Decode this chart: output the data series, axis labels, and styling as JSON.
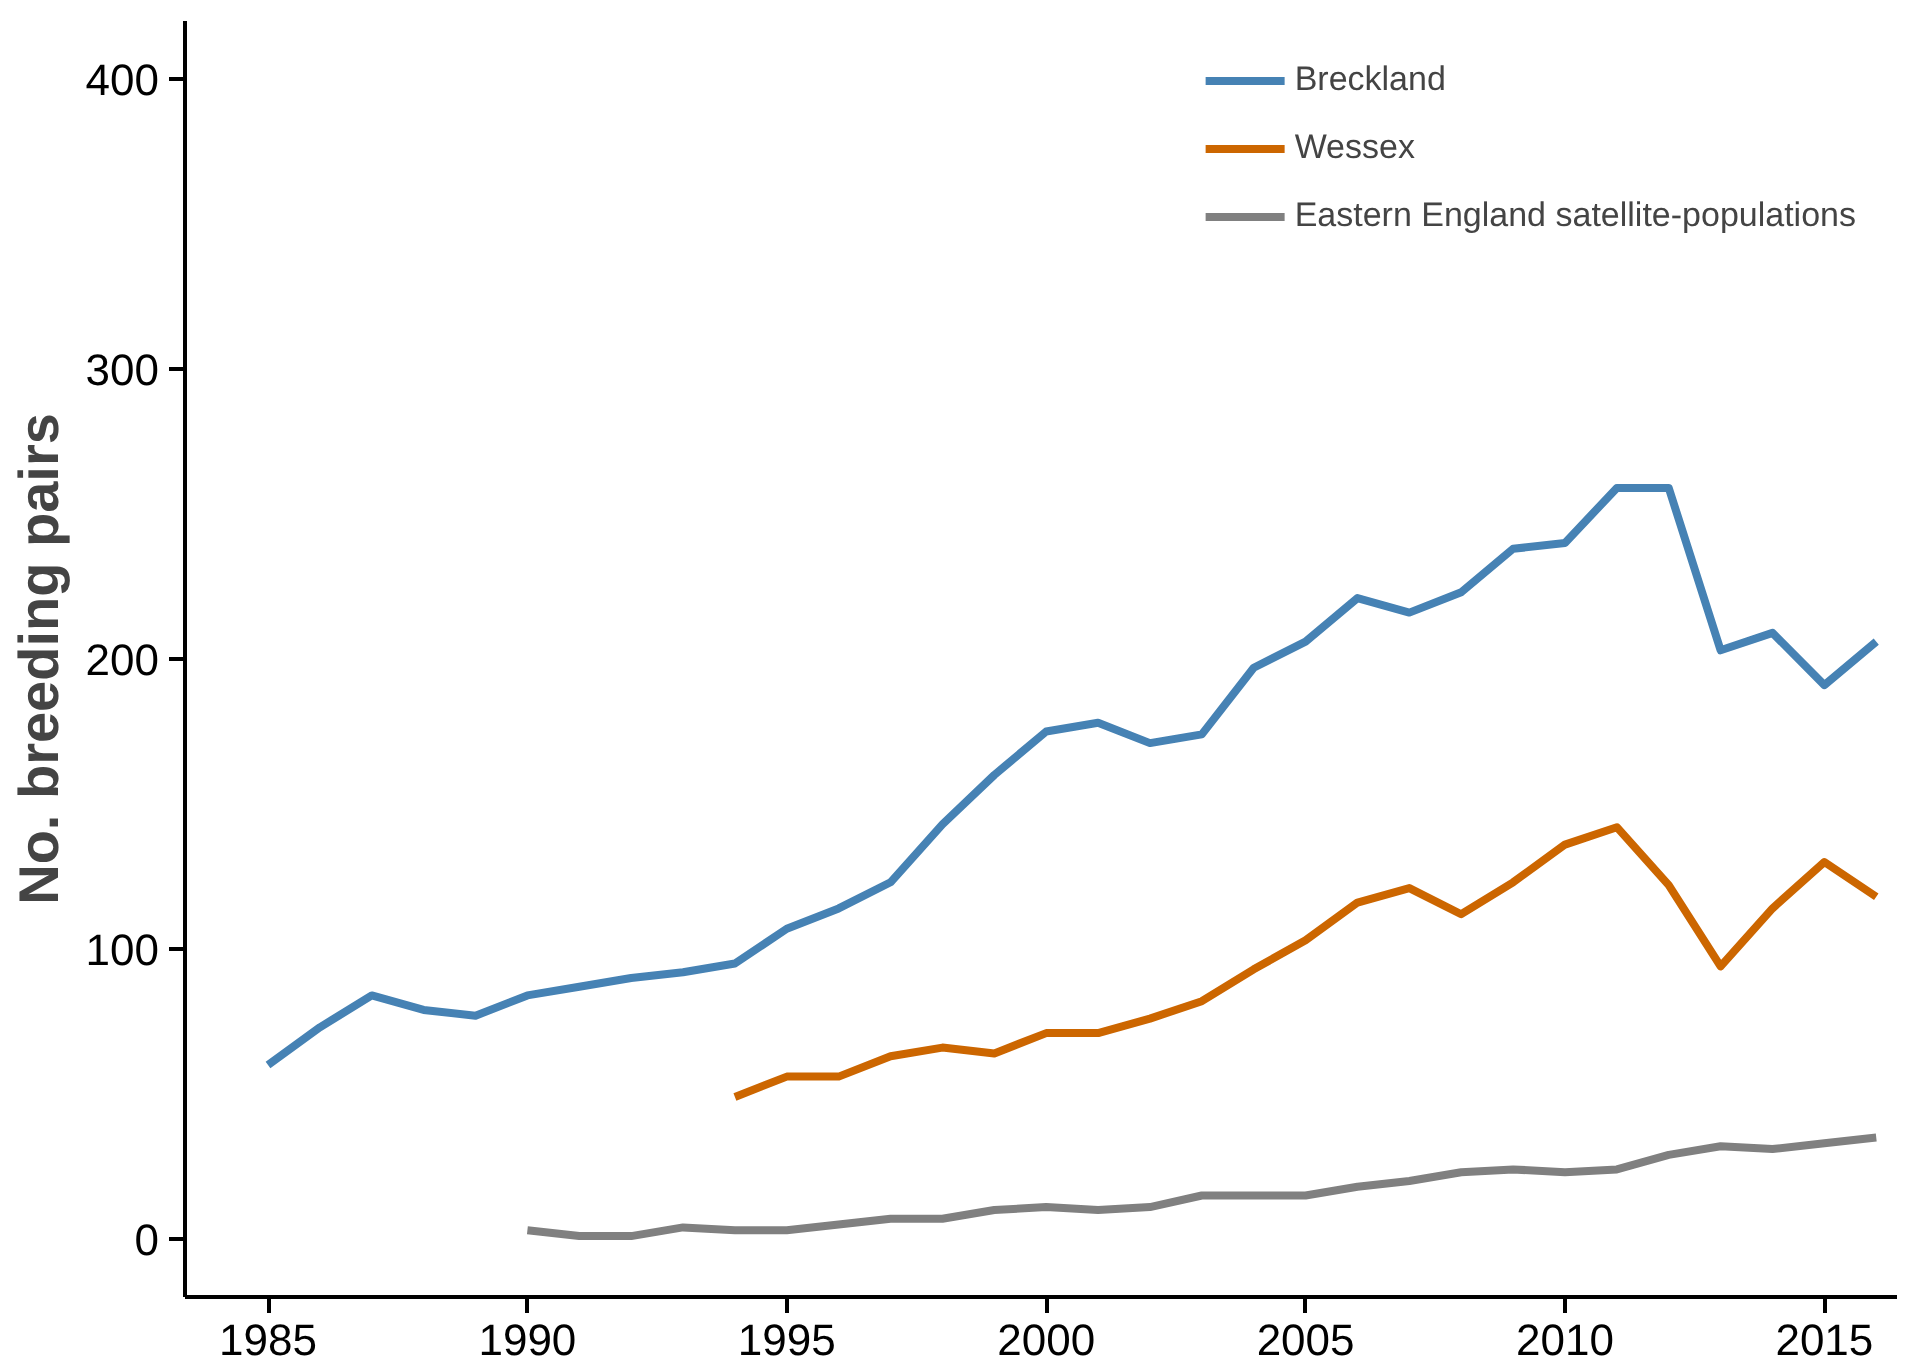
{
  "chart_data": {
    "type": "line",
    "ylabel": "No. breeding pairs",
    "xlim": [
      1983.4,
      2016.4
    ],
    "ylim": [
      -20,
      420
    ],
    "xticks": [
      1985,
      1990,
      1995,
      2000,
      2005,
      2010,
      2015
    ],
    "yticks": [
      0,
      100,
      200,
      300,
      400
    ],
    "grid": false,
    "legend": "top right",
    "line_style": "solid",
    "marker": "none",
    "series": [
      {
        "name": "Breckland",
        "color": "#4682b4",
        "x": [
          1985,
          1986,
          1987,
          1988,
          1989,
          1990,
          1991,
          1992,
          1993,
          1994,
          1995,
          1996,
          1997,
          1998,
          1999,
          2000,
          2001,
          2002,
          2003,
          2004,
          2005,
          2006,
          2007,
          2008,
          2009,
          2010,
          2011,
          2012,
          2013,
          2014,
          2015,
          2016
        ],
        "values": [
          60,
          73,
          84,
          79,
          77,
          84,
          87,
          90,
          92,
          95,
          107,
          114,
          123,
          143,
          160,
          175,
          178,
          171,
          174,
          197,
          206,
          221,
          216,
          223,
          238,
          240,
          259,
          259,
          203,
          209,
          191,
          206
        ]
      },
      {
        "name": "Wessex",
        "color": "#cc6600",
        "x": [
          1994,
          1995,
          1996,
          1997,
          1998,
          1999,
          2000,
          2001,
          2002,
          2003,
          2004,
          2005,
          2006,
          2007,
          2008,
          2009,
          2010,
          2011,
          2012,
          2013,
          2014,
          2015,
          2016
        ],
        "values": [
          49,
          56,
          56,
          63,
          66,
          64,
          71,
          71,
          76,
          82,
          93,
          103,
          116,
          121,
          112,
          123,
          136,
          142,
          122,
          94,
          114,
          130,
          118
        ]
      },
      {
        "name": "Eastern England satellite-populations",
        "color": "#808080",
        "x": [
          1990,
          1991,
          1992,
          1993,
          1994,
          1995,
          1996,
          1997,
          1998,
          1999,
          2000,
          2001,
          2002,
          2003,
          2004,
          2005,
          2006,
          2007,
          2008,
          2009,
          2010,
          2011,
          2012,
          2013,
          2014,
          2015,
          2016
        ],
        "values": [
          3,
          1,
          1,
          4,
          3,
          3,
          5,
          7,
          7,
          10,
          11,
          10,
          11,
          15,
          15,
          15,
          18,
          20,
          23,
          24,
          23,
          24,
          29,
          32,
          31,
          33,
          35
        ]
      }
    ]
  }
}
